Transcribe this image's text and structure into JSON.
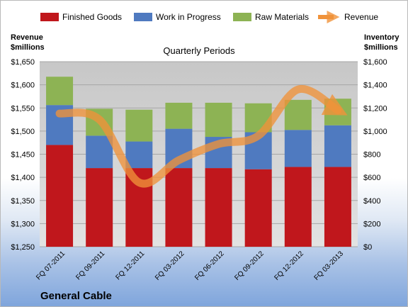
{
  "chart_data": {
    "type": "bar",
    "subtype": "stacked-bar with line overlay (dual axis)",
    "title": "Quarterly Periods",
    "brand": "General Cable",
    "left_axis": {
      "label_line1": "Revenue",
      "label_line2": "$millions",
      "min": 1250,
      "max": 1650,
      "step": 50,
      "ticks": [
        "$1,650",
        "$1,600",
        "$1,550",
        "$1,500",
        "$1,450",
        "$1,400",
        "$1,350",
        "$1,300",
        "$1,250"
      ]
    },
    "right_axis": {
      "label_line1": "Inventory",
      "label_line2": "$millions",
      "min": 0,
      "max": 1600,
      "step": 200,
      "ticks": [
        "$1,600",
        "$1,400",
        "$1,200",
        "$1,000",
        "$800",
        "$600",
        "$400",
        "$200",
        "$0"
      ]
    },
    "categories": [
      "FQ 07-2011",
      "FQ 09-2011",
      "FQ 12-2011",
      "FQ 03-2012",
      "FQ 06-2012",
      "FQ 09-2012",
      "FQ 12-2012",
      "FQ 03-2013"
    ],
    "series": [
      {
        "name": "Finished Goods",
        "axis": "right",
        "color": "#c0171c",
        "values": [
          880,
          680,
          680,
          680,
          680,
          670,
          690,
          690
        ]
      },
      {
        "name": "Work in Progress",
        "axis": "right",
        "color": "#4f7ac0",
        "values": [
          345,
          280,
          230,
          340,
          270,
          320,
          320,
          360
        ]
      },
      {
        "name": "Raw Materials",
        "axis": "right",
        "color": "#8db354",
        "values": [
          245,
          233,
          275,
          225,
          295,
          250,
          260,
          230
        ]
      }
    ],
    "line_series": {
      "name": "Revenue",
      "axis": "left",
      "color": "#f0923a",
      "values": [
        1538,
        1525,
        1389,
        1437,
        1472,
        1490,
        1590,
        1545
      ]
    },
    "grid": true,
    "legend_position": "top"
  }
}
